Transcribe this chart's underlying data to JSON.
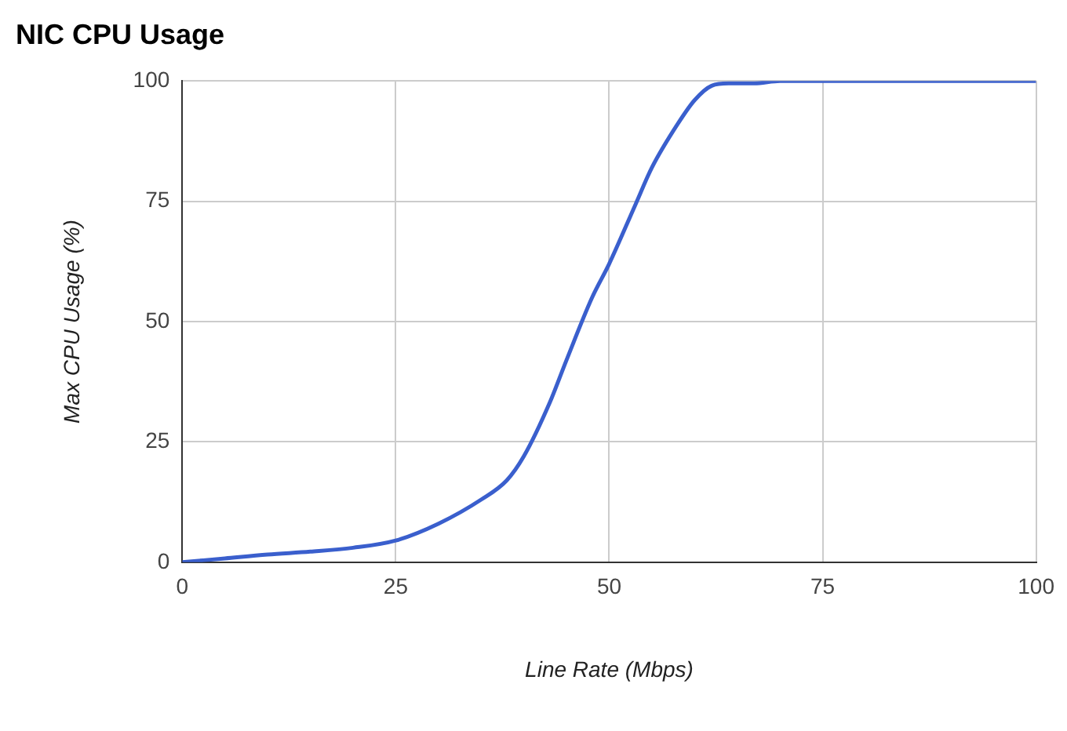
{
  "chart_data": {
    "type": "line",
    "title": "NIC CPU Usage",
    "xlabel": "Line Rate (Mbps)",
    "ylabel": "Max CPU Usage (%)",
    "x": [
      0,
      5,
      10,
      15,
      20,
      25,
      30,
      35,
      38,
      40,
      43,
      45,
      48,
      50,
      53,
      55,
      58,
      60,
      62,
      64,
      67,
      70,
      75,
      80,
      90,
      100
    ],
    "series": [
      {
        "color": "#3a5fcd",
        "values": [
          0,
          0.8,
          1.6,
          2.2,
          3,
          4.5,
          8,
          13,
          17,
          22,
          33,
          42,
          55,
          62,
          74,
          82,
          91,
          96,
          99,
          99.5,
          99.5,
          100,
          100,
          100,
          100,
          100
        ]
      }
    ],
    "xlim": [
      0,
      100
    ],
    "xticks": [
      0,
      25,
      50,
      75,
      100
    ],
    "ylim": [
      0,
      100
    ],
    "yticks": [
      0,
      25,
      50,
      75,
      100
    ],
    "grid": true,
    "legend": false,
    "marker": "none",
    "line_style": "solid"
  }
}
